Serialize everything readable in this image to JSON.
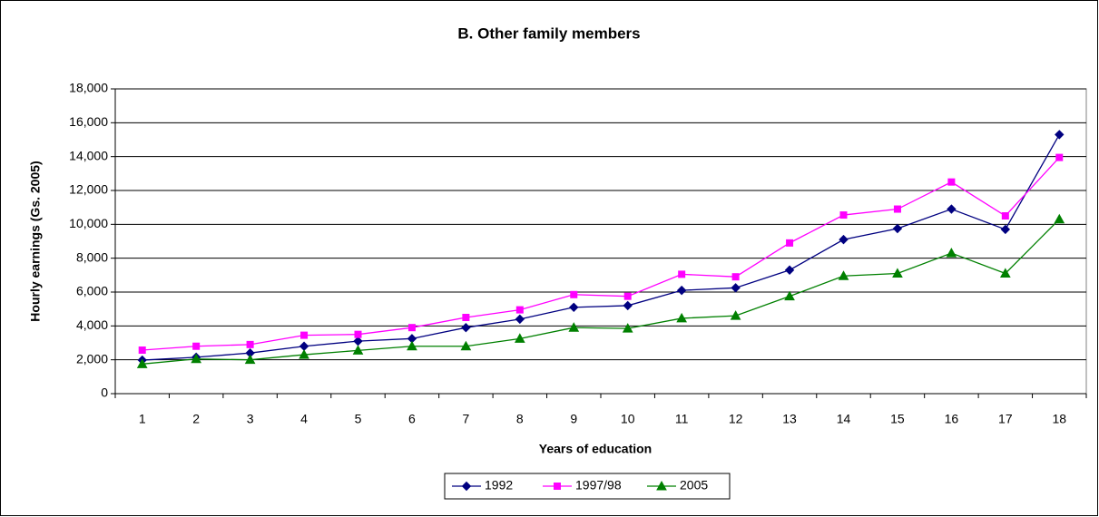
{
  "chart_data": {
    "type": "line",
    "title": "B. Other family members",
    "x_label": "Years of education",
    "y_label": "Hourly earnings (Gs. 2005)",
    "categories": [
      "1",
      "2",
      "3",
      "4",
      "5",
      "6",
      "7",
      "8",
      "9",
      "10",
      "11",
      "12",
      "13",
      "14",
      "15",
      "16",
      "17",
      "18"
    ],
    "ylim": [
      0,
      18000
    ],
    "yticks": [
      0,
      {
        "value": 2000,
        "label": "2,000"
      },
      {
        "value": 4000,
        "label": "4,000"
      },
      {
        "value": 6000,
        "label": "6,000"
      },
      {
        "value": 8000,
        "label": "8,000"
      },
      {
        "value": 10000,
        "label": "10,000"
      },
      {
        "value": 12000,
        "label": "12,000"
      },
      {
        "value": 14000,
        "label": "14,000"
      },
      {
        "value": 16000,
        "label": "16,000"
      },
      {
        "value": 18000,
        "label": "18,000"
      }
    ],
    "grid": true,
    "legend": "bottom",
    "series": [
      {
        "name": "1992",
        "color": "#000080",
        "marker": "diamond",
        "values": [
          1980,
          2150,
          2400,
          2800,
          3100,
          3250,
          3900,
          4400,
          5100,
          5200,
          6100,
          6250,
          7300,
          9100,
          9750,
          10900,
          9700,
          15300
        ]
      },
      {
        "name": "1997/98",
        "color": "#ff00ff",
        "marker": "square",
        "values": [
          2570,
          2800,
          2900,
          3450,
          3500,
          3900,
          4500,
          4950,
          5850,
          5750,
          7050,
          6900,
          8900,
          10550,
          10900,
          12500,
          10500,
          13950
        ]
      },
      {
        "name": "2005",
        "color": "#008000",
        "marker": "triangle",
        "values": [
          1750,
          2050,
          2000,
          2300,
          2550,
          2800,
          2800,
          3250,
          3900,
          3850,
          4450,
          4600,
          5750,
          6950,
          7100,
          8300,
          7100,
          10300
        ]
      }
    ]
  }
}
